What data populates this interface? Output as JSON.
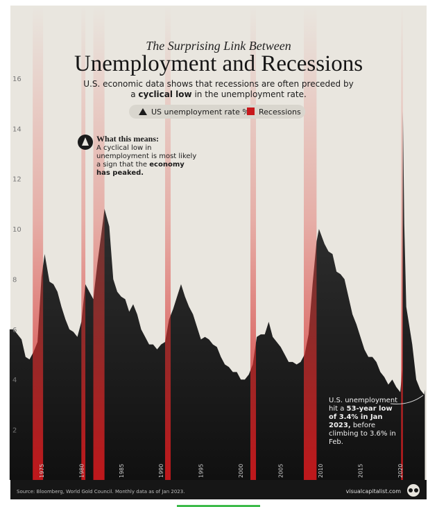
{
  "chart_data": {
    "type": "area",
    "kicker": "The Surprising Link Between",
    "title": "Unemployment and Recessions",
    "subtitle": [
      "U.S. economic data shows that recessions are often preceded by a",
      "cyclical low",
      "in the unemployment rate."
    ],
    "note_heading": "What this means:",
    "note_body": [
      "A cyclical low in unemployment is most likely a sign that the",
      "economy has peaked."
    ],
    "annotation": [
      "U.S. unemployment hit a",
      "53-year low of 3.4% in Jan 2023,",
      "before climbing to 3.6% in Feb."
    ],
    "source": "Source: Bloomberg, World Gold Council. Monthly data as of Jan 2023.",
    "brand": "visualcapitalist.com",
    "x": [
      1971.0,
      1971.5,
      1972.0,
      1972.5,
      1973.0,
      1973.5,
      1974.0,
      1974.5,
      1975.0,
      1975.4,
      1976.0,
      1976.5,
      1977.0,
      1977.5,
      1978.0,
      1978.5,
      1979.0,
      1979.5,
      1980.0,
      1980.5,
      1981.0,
      1981.5,
      1982.0,
      1982.5,
      1982.9,
      1983.5,
      1984.0,
      1984.5,
      1985.0,
      1985.5,
      1986.0,
      1986.5,
      1987.0,
      1987.5,
      1988.0,
      1988.5,
      1989.0,
      1989.5,
      1990.0,
      1990.5,
      1991.0,
      1991.5,
      1992.0,
      1992.5,
      1993.0,
      1993.5,
      1994.0,
      1994.5,
      1995.0,
      1995.5,
      1996.0,
      1996.5,
      1997.0,
      1997.5,
      1998.0,
      1998.5,
      1999.0,
      1999.5,
      2000.0,
      2000.5,
      2001.0,
      2001.5,
      2002.0,
      2002.5,
      2003.0,
      2003.5,
      2004.0,
      2004.5,
      2005.0,
      2005.5,
      2006.0,
      2006.5,
      2007.0,
      2007.5,
      2008.0,
      2008.5,
      2009.0,
      2009.5,
      2009.8,
      2010.5,
      2011.0,
      2011.5,
      2012.0,
      2012.5,
      2013.0,
      2013.5,
      2014.0,
      2014.5,
      2015.0,
      2015.5,
      2016.0,
      2016.5,
      2017.0,
      2017.5,
      2018.0,
      2018.5,
      2019.0,
      2019.5,
      2020.0,
      2020.25,
      2020.33,
      2020.5,
      2020.75,
      2021.0,
      2021.5,
      2022.0,
      2022.5,
      2023.0,
      2023.08
    ],
    "series": [
      {
        "name": "US unemployment rate %",
        "color": "#1b1b1b",
        "values": [
          6.0,
          6.0,
          5.8,
          5.6,
          4.9,
          4.8,
          5.1,
          5.5,
          8.1,
          9.0,
          7.9,
          7.8,
          7.5,
          6.9,
          6.4,
          6.0,
          5.9,
          5.7,
          6.3,
          7.8,
          7.5,
          7.2,
          8.6,
          9.8,
          10.8,
          10.1,
          8.0,
          7.5,
          7.3,
          7.2,
          6.7,
          7.0,
          6.6,
          6.0,
          5.7,
          5.4,
          5.4,
          5.2,
          5.4,
          5.5,
          6.4,
          6.8,
          7.3,
          7.8,
          7.3,
          6.9,
          6.6,
          6.1,
          5.6,
          5.7,
          5.6,
          5.4,
          5.3,
          4.9,
          4.6,
          4.5,
          4.3,
          4.3,
          4.0,
          4.0,
          4.2,
          4.6,
          5.7,
          5.8,
          5.8,
          6.3,
          5.7,
          5.5,
          5.3,
          5.0,
          4.7,
          4.7,
          4.6,
          4.7,
          5.0,
          5.8,
          7.8,
          9.5,
          10.0,
          9.4,
          9.1,
          9.0,
          8.3,
          8.2,
          8.0,
          7.3,
          6.6,
          6.2,
          5.7,
          5.2,
          4.9,
          4.9,
          4.7,
          4.3,
          4.1,
          3.8,
          4.0,
          3.7,
          3.5,
          4.4,
          14.7,
          10.2,
          6.9,
          6.4,
          5.4,
          4.0,
          3.6,
          3.4,
          3.6
        ]
      }
    ],
    "recessions": {
      "name": "Recessions",
      "color": "#c8181c",
      "periods": [
        [
          1973.9,
          1975.2
        ],
        [
          1980.0,
          1980.5
        ],
        [
          1981.5,
          1982.9
        ],
        [
          1990.5,
          1991.2
        ],
        [
          2001.2,
          2001.9
        ],
        [
          2007.9,
          2009.5
        ],
        [
          2020.1,
          2020.33
        ]
      ]
    },
    "xlim": [
      1971.1,
      2023.3
    ],
    "xticks": [
      1975,
      1980,
      1985,
      1990,
      1995,
      2000,
      2005,
      2010,
      2015,
      2020
    ],
    "ylim": [
      0,
      18.9
    ],
    "yticks": [
      2,
      4,
      6,
      8,
      10,
      12,
      14,
      16
    ]
  }
}
